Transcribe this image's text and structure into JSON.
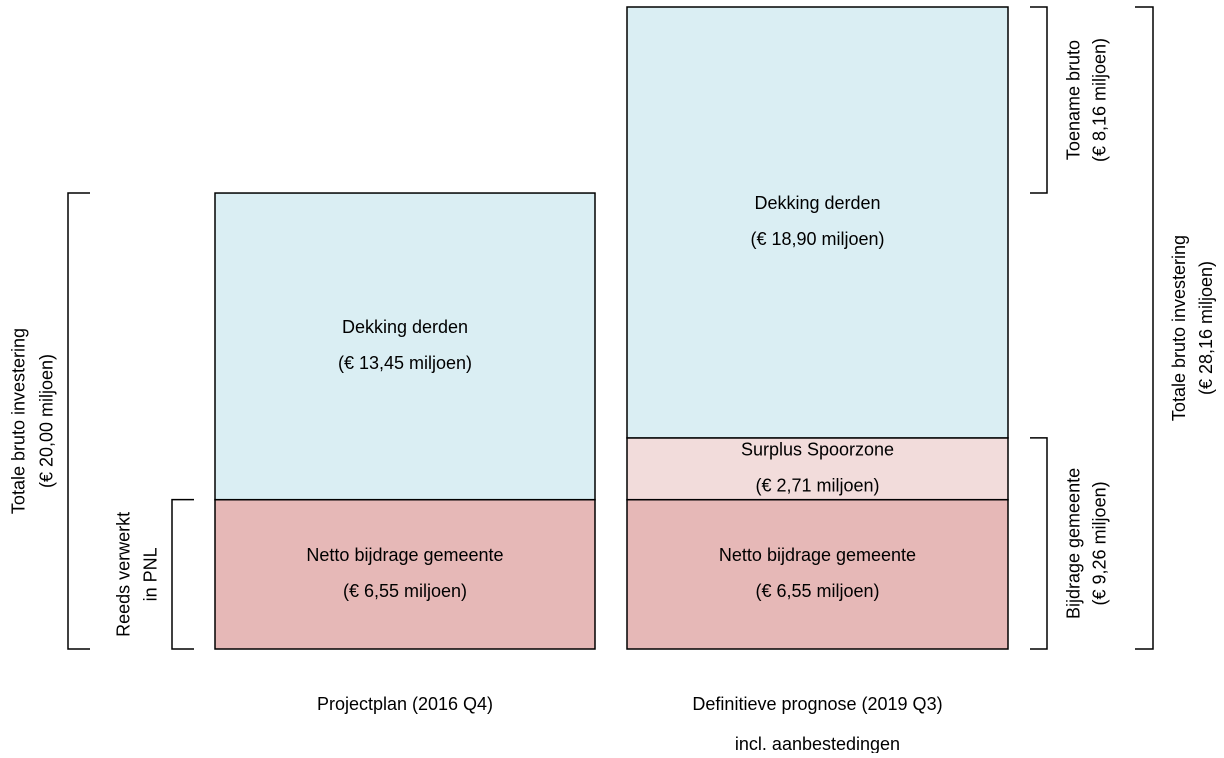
{
  "chart_data": {
    "type": "stacked_bar",
    "categories": [
      [
        "Projectplan (2016 Q4)"
      ],
      [
        "Definitieve prognose (2019 Q3)",
        "incl. aanbestedingen"
      ]
    ],
    "ylim": [
      0,
      28.16
    ],
    "series": [
      {
        "name": "Netto bijdrage gemeente",
        "color": "#e6b8b7",
        "values": [
          6.55,
          6.55
        ],
        "value_labels": [
          "(€ 6,55 miljoen)",
          "(€ 6,55 miljoen)"
        ]
      },
      {
        "name": "Surplus Spoorzone",
        "color": "#f2dcdb",
        "values": [
          null,
          2.71
        ],
        "value_labels": [
          null,
          "(€ 2,71 miljoen)"
        ]
      },
      {
        "name": "Dekking derden",
        "color": "#daeef3",
        "values": [
          13.45,
          18.9
        ],
        "value_labels": [
          "(€ 13,45 miljoen)",
          "(€ 18,90 miljoen)"
        ]
      }
    ],
    "brackets": [
      {
        "lines": [
          "Totale bruto investering",
          "(€ 20,00 miljoen)"
        ],
        "value": 20.0
      },
      {
        "lines": [
          "Reeds verwerkt",
          "in PNL"
        ],
        "value": 6.55
      },
      {
        "lines": [
          "Toename bruto",
          "(€ 8,16 miljoen)"
        ],
        "value": 8.16
      },
      {
        "lines": [
          "Bijdrage gemeente",
          "(€ 9,26 miljoen)"
        ],
        "value": 9.26
      },
      {
        "lines": [
          "Totale bruto investering",
          "(€ 28,16 miljoen)"
        ],
        "value": 28.16
      }
    ]
  }
}
